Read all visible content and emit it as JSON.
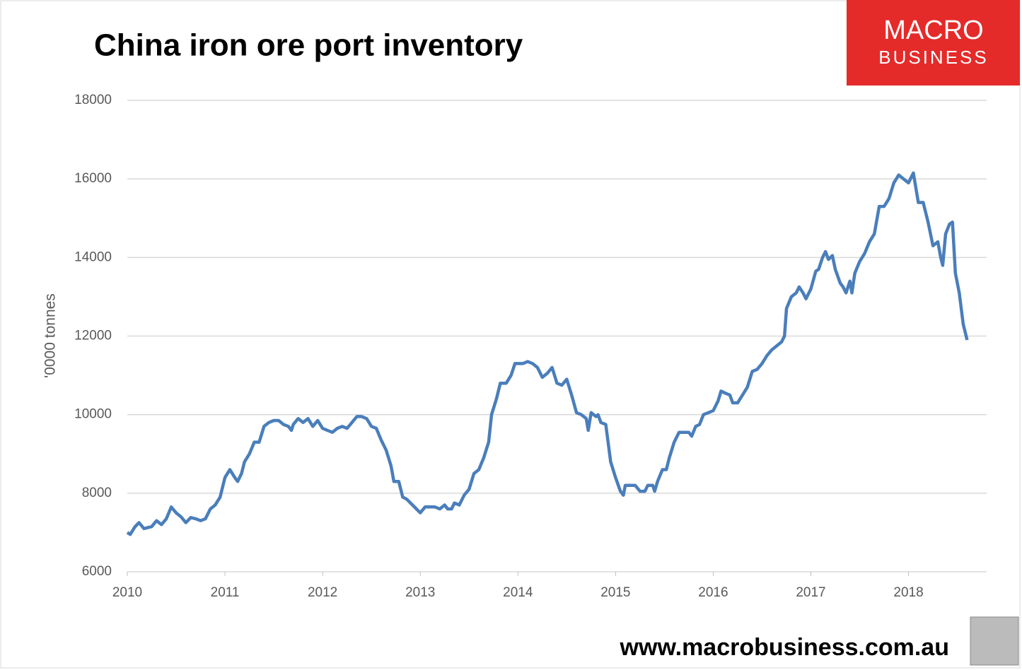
{
  "chart_data": {
    "type": "line",
    "title": "China iron ore port inventory",
    "ylabel": "'0000 tonnes",
    "logo": {
      "top": "MACRO",
      "bottom": "BUSINESS"
    },
    "footer": "www.macrobusiness.com.au",
    "xlim": [
      2010,
      2018.8
    ],
    "xticks": [
      2010,
      2011,
      2012,
      2013,
      2014,
      2015,
      2016,
      2017,
      2018
    ],
    "ylim": [
      6000,
      18000
    ],
    "yticks": [
      6000,
      8000,
      10000,
      12000,
      14000,
      16000,
      18000
    ],
    "grid": true,
    "series": [
      {
        "name": "Port inventory",
        "color": "#4a7ebb",
        "x": [
          2010.0,
          2010.03,
          2010.08,
          2010.12,
          2010.17,
          2010.25,
          2010.3,
          2010.35,
          2010.4,
          2010.45,
          2010.5,
          2010.55,
          2010.6,
          2010.65,
          2010.7,
          2010.75,
          2010.8,
          2010.85,
          2010.9,
          2010.95,
          2011.0,
          2011.05,
          2011.1,
          2011.13,
          2011.17,
          2011.2,
          2011.25,
          2011.3,
          2011.35,
          2011.4,
          2011.45,
          2011.5,
          2011.55,
          2011.6,
          2011.65,
          2011.68,
          2011.7,
          2011.75,
          2011.8,
          2011.85,
          2011.9,
          2011.95,
          2012.0,
          2012.05,
          2012.1,
          2012.15,
          2012.2,
          2012.25,
          2012.3,
          2012.35,
          2012.4,
          2012.45,
          2012.5,
          2012.55,
          2012.6,
          2012.65,
          2012.7,
          2012.73,
          2012.78,
          2012.82,
          2012.86,
          2012.92,
          2013.0,
          2013.05,
          2013.1,
          2013.15,
          2013.2,
          2013.25,
          2013.28,
          2013.32,
          2013.35,
          2013.4,
          2013.45,
          2013.5,
          2013.55,
          2013.6,
          2013.65,
          2013.7,
          2013.73,
          2013.78,
          2013.82,
          2013.88,
          2013.93,
          2013.97,
          2014.05,
          2014.1,
          2014.15,
          2014.2,
          2014.25,
          2014.3,
          2014.35,
          2014.4,
          2014.45,
          2014.5,
          2014.55,
          2014.6,
          2014.65,
          2014.7,
          2014.72,
          2014.75,
          2014.8,
          2014.82,
          2014.85,
          2014.9,
          2014.95,
          2015.0,
          2015.05,
          2015.08,
          2015.1,
          2015.15,
          2015.2,
          2015.25,
          2015.3,
          2015.33,
          2015.38,
          2015.4,
          2015.43,
          2015.48,
          2015.52,
          2015.55,
          2015.6,
          2015.65,
          2015.7,
          2015.75,
          2015.78,
          2015.82,
          2015.86,
          2015.9,
          2015.95,
          2016.0,
          2016.05,
          2016.08,
          2016.12,
          2016.17,
          2016.2,
          2016.25,
          2016.3,
          2016.35,
          2016.4,
          2016.45,
          2016.5,
          2016.55,
          2016.6,
          2016.65,
          2016.7,
          2016.73,
          2016.75,
          2016.8,
          2016.85,
          2016.88,
          2016.92,
          2016.95,
          2017.0,
          2017.05,
          2017.08,
          2017.12,
          2017.15,
          2017.18,
          2017.22,
          2017.25,
          2017.3,
          2017.33,
          2017.36,
          2017.4,
          2017.42,
          2017.45,
          2017.5,
          2017.55,
          2017.6,
          2017.65,
          2017.7,
          2017.75,
          2017.8,
          2017.85,
          2017.9,
          2017.95,
          2018.0,
          2018.05,
          2018.08,
          2018.1,
          2018.15,
          2018.2,
          2018.25,
          2018.3,
          2018.33,
          2018.35,
          2018.38,
          2018.42,
          2018.45,
          2018.48,
          2018.52,
          2018.56,
          2018.6
        ],
        "values": [
          7000,
          6950,
          7150,
          7250,
          7100,
          7150,
          7300,
          7200,
          7350,
          7650,
          7500,
          7400,
          7250,
          7380,
          7350,
          7300,
          7350,
          7600,
          7700,
          7900,
          8400,
          8600,
          8400,
          8300,
          8500,
          8800,
          9000,
          9300,
          9300,
          9700,
          9800,
          9850,
          9850,
          9750,
          9700,
          9600,
          9750,
          9900,
          9800,
          9900,
          9700,
          9850,
          9650,
          9600,
          9550,
          9650,
          9700,
          9650,
          9800,
          9950,
          9950,
          9900,
          9700,
          9650,
          9350,
          9100,
          8700,
          8300,
          8300,
          7900,
          7850,
          7700,
          7500,
          7650,
          7650,
          7650,
          7600,
          7700,
          7600,
          7600,
          7750,
          7700,
          7950,
          8100,
          8500,
          8600,
          8900,
          9300,
          10000,
          10400,
          10800,
          10800,
          11000,
          11300,
          11300,
          11350,
          11300,
          11200,
          10950,
          11050,
          11200,
          10800,
          10750,
          10900,
          10500,
          10050,
          10000,
          9900,
          9600,
          10050,
          9950,
          10000,
          9800,
          9750,
          8800,
          8400,
          8050,
          7950,
          8200,
          8200,
          8200,
          8050,
          8050,
          8200,
          8200,
          8050,
          8300,
          8600,
          8600,
          8900,
          9300,
          9550,
          9550,
          9550,
          9450,
          9700,
          9750,
          10000,
          10050,
          10100,
          10350,
          10600,
          10550,
          10500,
          10300,
          10300,
          10500,
          10700,
          11100,
          11150,
          11300,
          11500,
          11650,
          11750,
          11850,
          12000,
          12700,
          13000,
          13100,
          13250,
          13100,
          12950,
          13200,
          13650,
          13700,
          14000,
          14150,
          13950,
          14050,
          13700,
          13350,
          13250,
          13100,
          13400,
          13100,
          13600,
          13900,
          14100,
          14400,
          14600,
          15300,
          15300,
          15500,
          15900,
          16100,
          16000,
          15900,
          16150,
          15700,
          15400,
          15400,
          14900,
          14300,
          14400,
          14000,
          13800,
          14600,
          14850,
          14900,
          13600,
          13100,
          12300,
          11900
        ]
      }
    ]
  }
}
